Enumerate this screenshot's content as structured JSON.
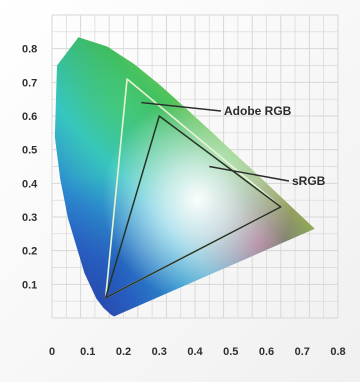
{
  "chart_data": {
    "type": "scatter",
    "title": "",
    "xlabel": "",
    "ylabel": "",
    "xlim": [
      0,
      0.8
    ],
    "ylim": [
      0,
      0.9
    ],
    "grid": true,
    "x_ticks": [
      0,
      0.1,
      0.2,
      0.3,
      0.4,
      0.5,
      0.6,
      0.7,
      0.8
    ],
    "x_tick_labels": [
      "0",
      "0.1",
      "0.2",
      "0.3",
      "0.4",
      "0.5",
      "0.6",
      "0.7",
      "0.8"
    ],
    "y_ticks": [
      0.1,
      0.2,
      0.3,
      0.4,
      0.5,
      0.6,
      0.7,
      0.8
    ],
    "y_tick_labels": [
      "0.1",
      "0.2",
      "0.3",
      "0.4",
      "0.5",
      "0.6",
      "0.7",
      "0.8"
    ],
    "spectral_locus": [
      [
        0.174,
        0.005
      ],
      [
        0.166,
        0.009
      ],
      [
        0.144,
        0.03
      ],
      [
        0.124,
        0.058
      ],
      [
        0.091,
        0.133
      ],
      [
        0.045,
        0.295
      ],
      [
        0.023,
        0.413
      ],
      [
        0.008,
        0.538
      ],
      [
        0.014,
        0.75
      ],
      [
        0.074,
        0.834
      ],
      [
        0.155,
        0.806
      ],
      [
        0.23,
        0.754
      ],
      [
        0.302,
        0.692
      ],
      [
        0.373,
        0.624
      ],
      [
        0.444,
        0.555
      ],
      [
        0.512,
        0.487
      ],
      [
        0.576,
        0.424
      ],
      [
        0.627,
        0.373
      ],
      [
        0.667,
        0.333
      ],
      [
        0.7,
        0.3
      ],
      [
        0.735,
        0.265
      ]
    ],
    "series": [
      {
        "name": "Adobe RGB",
        "points": [
          [
            0.64,
            0.33
          ],
          [
            0.21,
            0.71
          ],
          [
            0.15,
            0.06
          ]
        ]
      },
      {
        "name": "sRGB",
        "points": [
          [
            0.64,
            0.33
          ],
          [
            0.3,
            0.6
          ],
          [
            0.15,
            0.06
          ]
        ]
      }
    ],
    "annotations": [
      {
        "name": "Adobe RGB",
        "point": [
          0.25,
          0.64
        ]
      },
      {
        "name": "sRGB",
        "point": [
          0.44,
          0.45
        ]
      }
    ],
    "colors": {
      "background": "#ffffff",
      "grid": "#d7d7d7",
      "tick_text": "#2f2f2f",
      "adobe_rgb_outline": "#e8f4d0",
      "srgb_outline": "#263326",
      "callout_line": "#2b2b2b",
      "locus_blue": "#312d8f",
      "locus_green": "#2fb35b",
      "locus_yellow": "#d7d81a",
      "locus_red": "#e1263c"
    }
  }
}
